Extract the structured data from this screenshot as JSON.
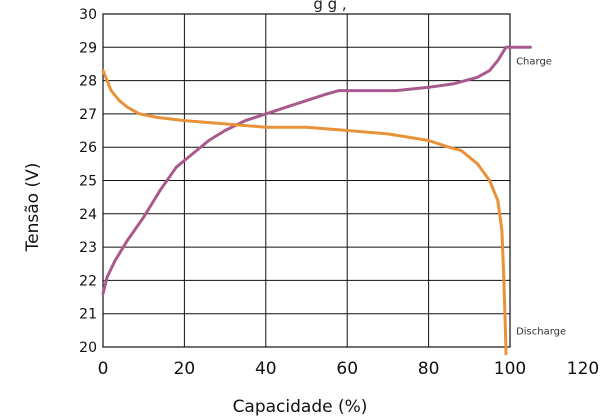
{
  "chart_data": {
    "type": "line",
    "title_partial": "g g , ",
    "xlabel": "Capacidade (%)",
    "ylabel": "Tensão (V)",
    "xlim": [
      0,
      120
    ],
    "ylim": [
      20,
      30
    ],
    "grid": true,
    "x_ticks": [
      "0",
      "20",
      "40",
      "60",
      "80",
      "100",
      "120"
    ],
    "y_ticks": [
      "20",
      "21",
      "22",
      "23",
      "24",
      "25",
      "26",
      "27",
      "28",
      "29",
      "30"
    ],
    "annotations": [
      {
        "text": "Charge",
        "x": 101,
        "y": 28.6
      },
      {
        "text": "Discharge",
        "x": 101,
        "y": 20.5
      }
    ],
    "series": [
      {
        "name": "Charge",
        "color": "#a85a8e",
        "points": [
          [
            0,
            21.6
          ],
          [
            1,
            22.1
          ],
          [
            3,
            22.6
          ],
          [
            6,
            23.2
          ],
          [
            10,
            23.9
          ],
          [
            14,
            24.7
          ],
          [
            18,
            25.4
          ],
          [
            22,
            25.8
          ],
          [
            26,
            26.2
          ],
          [
            30,
            26.5
          ],
          [
            35,
            26.8
          ],
          [
            40,
            27.0
          ],
          [
            45,
            27.2
          ],
          [
            50,
            27.4
          ],
          [
            55,
            27.6
          ],
          [
            58,
            27.7
          ],
          [
            65,
            27.7
          ],
          [
            72,
            27.7
          ],
          [
            80,
            27.8
          ],
          [
            86,
            27.9
          ],
          [
            92,
            28.1
          ],
          [
            95,
            28.3
          ],
          [
            97,
            28.6
          ],
          [
            99,
            29.0
          ],
          [
            103,
            29.0
          ],
          [
            105,
            29.0
          ]
        ]
      },
      {
        "name": "Discharge",
        "color": "#e8923a",
        "points": [
          [
            0,
            28.3
          ],
          [
            1,
            28.0
          ],
          [
            2,
            27.7
          ],
          [
            4,
            27.4
          ],
          [
            6,
            27.2
          ],
          [
            9,
            27.0
          ],
          [
            13,
            26.9
          ],
          [
            20,
            26.8
          ],
          [
            30,
            26.7
          ],
          [
            40,
            26.6
          ],
          [
            50,
            26.6
          ],
          [
            60,
            26.5
          ],
          [
            70,
            26.4
          ],
          [
            80,
            26.2
          ],
          [
            85,
            26.0
          ],
          [
            88,
            25.9
          ],
          [
            92,
            25.5
          ],
          [
            95,
            25.0
          ],
          [
            97,
            24.4
          ],
          [
            98,
            23.5
          ],
          [
            98.5,
            22.0
          ],
          [
            99,
            20.0
          ],
          [
            99,
            19.8
          ]
        ]
      }
    ]
  },
  "colors": {
    "grid": "#111111",
    "frame": "#111111",
    "background": "#ffffff"
  }
}
